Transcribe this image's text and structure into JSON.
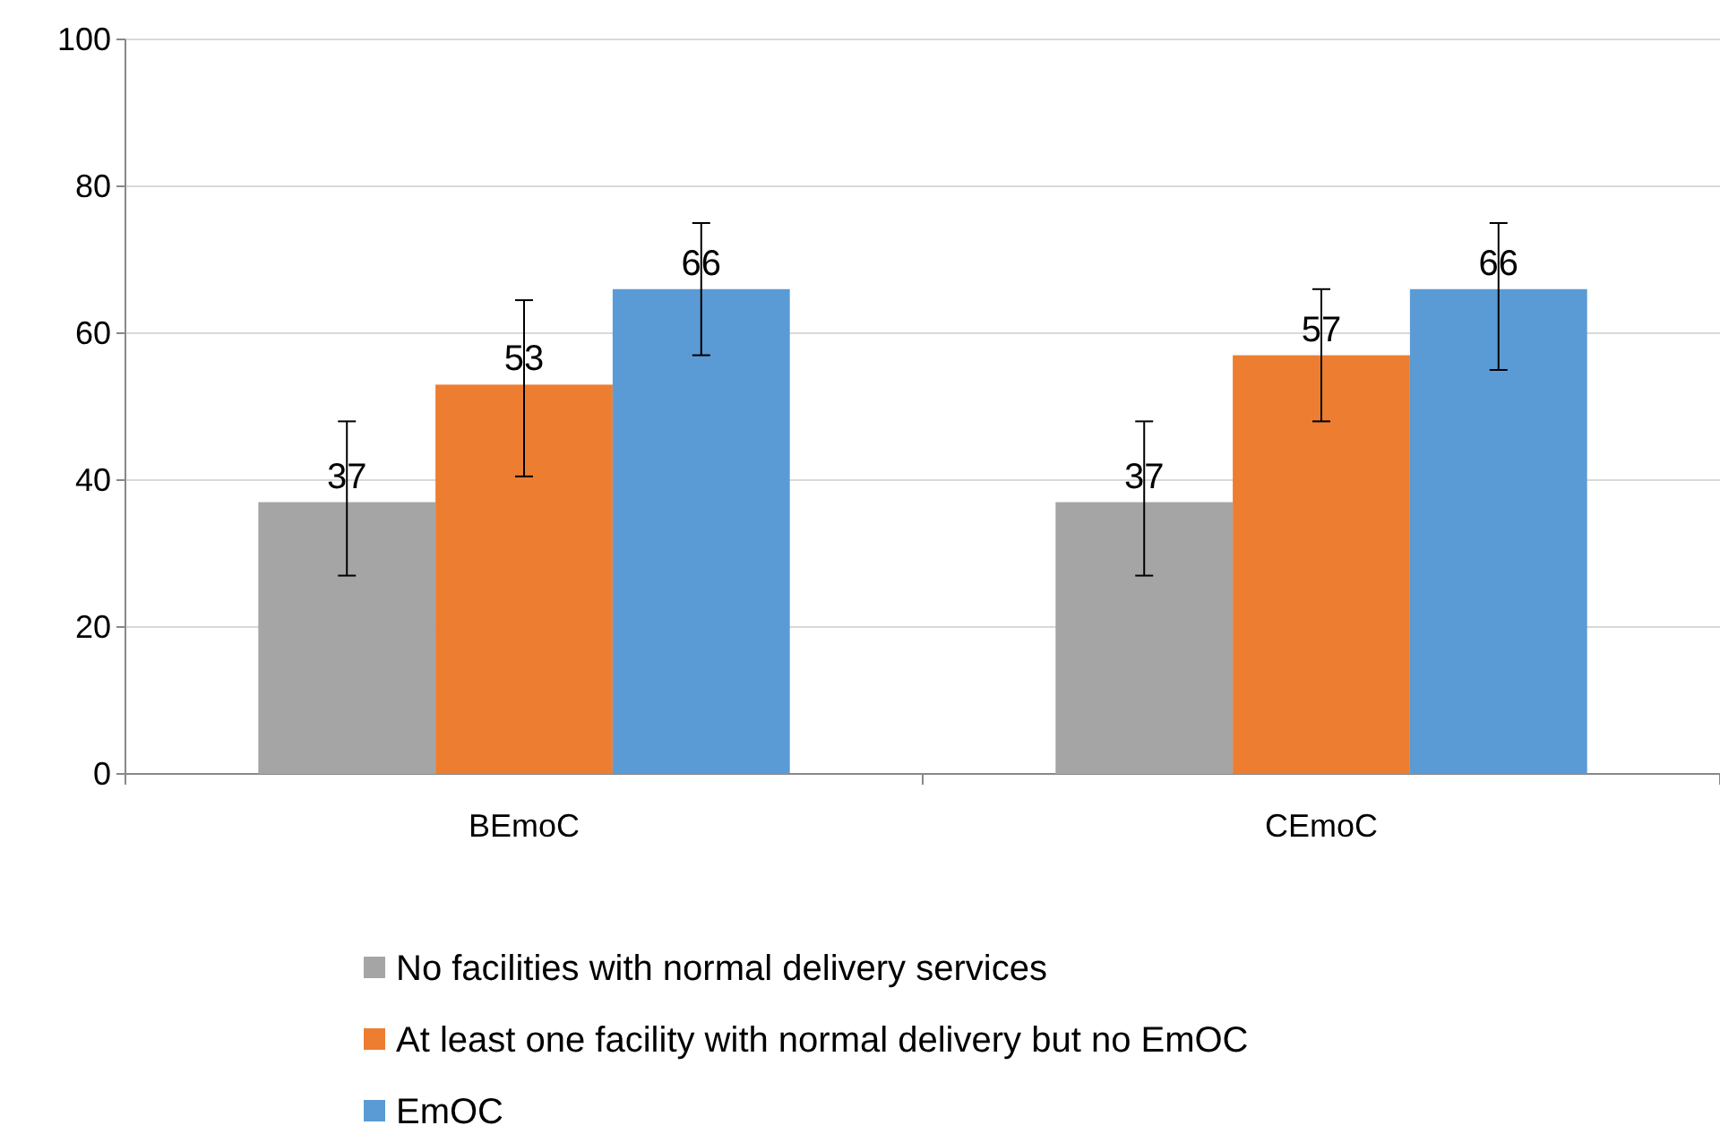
{
  "chart_data": {
    "type": "bar",
    "categories": [
      "BEmoC",
      "CEmoC"
    ],
    "series": [
      {
        "name": "No facilities with normal delivery services",
        "color": "#a5a5a5",
        "values": [
          37,
          37
        ],
        "errors": [
          [
            27,
            48
          ],
          [
            27,
            48
          ]
        ]
      },
      {
        "name": "At least one facility with normal delivery but no EmOC",
        "color": "#ed7d31",
        "values": [
          53,
          57
        ],
        "errors": [
          [
            40.5,
            64.5
          ],
          [
            48,
            66
          ]
        ]
      },
      {
        "name": "EmOC",
        "color": "#5b9bd5",
        "values": [
          66,
          66
        ],
        "errors": [
          [
            57,
            75
          ],
          [
            55,
            75
          ]
        ]
      }
    ],
    "ylim": [
      0,
      100
    ],
    "yticks": [
      0,
      20,
      40,
      60,
      80,
      100
    ],
    "grid": "y",
    "legend": "bottom",
    "data_labels": true
  }
}
